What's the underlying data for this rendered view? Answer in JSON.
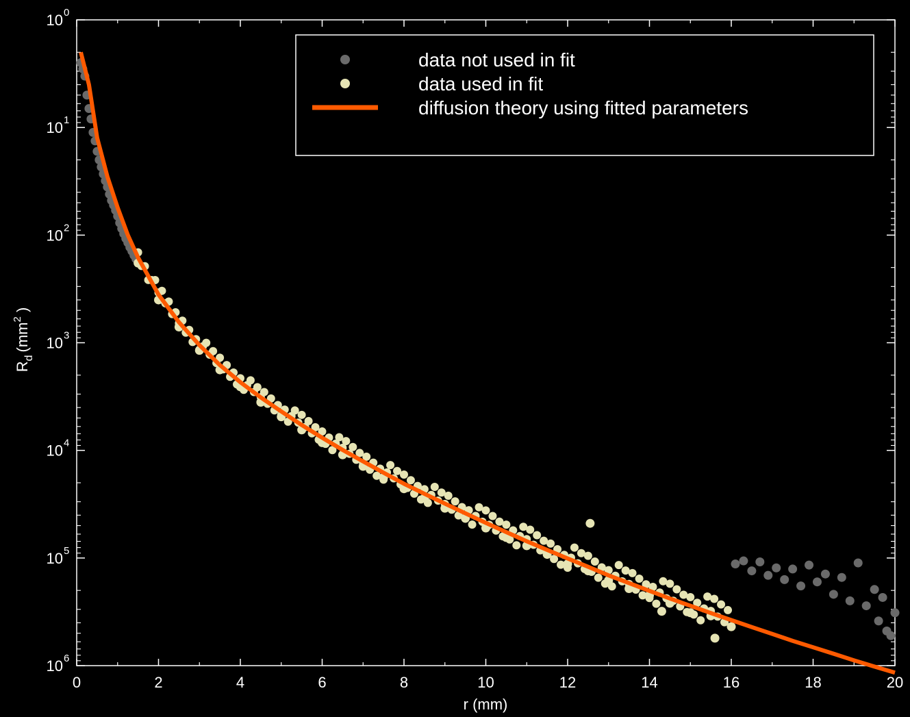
{
  "chart_data": {
    "type": "scatter",
    "xlabel": "r (mm)",
    "ylabel": {
      "base": "R",
      "subscript": "d",
      "unit_open": "(mm",
      "unit_sup": "2",
      "unit_close": " )"
    },
    "xlim": [
      0,
      20
    ],
    "ylim": [
      1e-06,
      1
    ],
    "yscale": "log",
    "y_direction": "decreasing-downward, exponent labels shown without minus sign",
    "grid": false,
    "legend_position": "top-right",
    "x_ticks": [
      "0",
      "2",
      "4",
      "6",
      "8",
      "10",
      "12",
      "14",
      "16",
      "18",
      "20"
    ],
    "y_ticks": [
      {
        "base": "10",
        "exp": "0"
      },
      {
        "base": "10",
        "exp": "1"
      },
      {
        "base": "10",
        "exp": "2"
      },
      {
        "base": "10",
        "exp": "3"
      },
      {
        "base": "10",
        "exp": "4"
      },
      {
        "base": "10",
        "exp": "5"
      },
      {
        "base": "10",
        "exp": "6"
      }
    ],
    "series": [
      {
        "name": "data not used in fit",
        "kind": "scatter",
        "color": "#6a6a6a",
        "x_range": [
          [
            0.05,
            1.5
          ],
          [
            16.0,
            20.0
          ]
        ],
        "points": [
          [
            0.1,
            0.4
          ],
          [
            0.15,
            0.35
          ],
          [
            0.2,
            0.3
          ],
          [
            0.25,
            0.2
          ],
          [
            0.3,
            0.15
          ],
          [
            0.35,
            0.12
          ],
          [
            0.4,
            0.09
          ],
          [
            0.45,
            0.075
          ],
          [
            0.5,
            0.06
          ],
          [
            0.55,
            0.05
          ],
          [
            0.6,
            0.043
          ],
          [
            0.65,
            0.037
          ],
          [
            0.7,
            0.032
          ],
          [
            0.75,
            0.028
          ],
          [
            0.8,
            0.024
          ],
          [
            0.85,
            0.021
          ],
          [
            0.9,
            0.019
          ],
          [
            0.95,
            0.017
          ],
          [
            1.0,
            0.015
          ],
          [
            1.05,
            0.013
          ],
          [
            1.1,
            0.0115
          ],
          [
            1.15,
            0.0103
          ],
          [
            1.2,
            0.0093
          ],
          [
            1.25,
            0.0085
          ],
          [
            1.3,
            0.0077
          ],
          [
            1.35,
            0.0071
          ],
          [
            1.4,
            0.0065
          ],
          [
            1.45,
            0.006
          ],
          [
            16.1,
            8.8e-06
          ],
          [
            16.3,
            9.4e-06
          ],
          [
            16.5,
            7.6e-06
          ],
          [
            16.7,
            9.2e-06
          ],
          [
            16.9,
            6.9e-06
          ],
          [
            17.1,
            8.1e-06
          ],
          [
            17.3,
            6.3e-06
          ],
          [
            17.5,
            7.9e-06
          ],
          [
            17.7,
            5.5e-06
          ],
          [
            17.9,
            8.6e-06
          ],
          [
            18.1,
            6e-06
          ],
          [
            18.3,
            7.1e-06
          ],
          [
            18.5,
            4.6e-06
          ],
          [
            18.7,
            6.6e-06
          ],
          [
            18.9,
            4e-06
          ],
          [
            19.1,
            9e-06
          ],
          [
            19.3,
            3.6e-06
          ],
          [
            19.5,
            5.1e-06
          ],
          [
            19.6,
            2.6e-06
          ],
          [
            19.7,
            4.3e-06
          ],
          [
            19.8,
            2.1e-06
          ],
          [
            19.9,
            1.9e-06
          ],
          [
            20.0,
            3.1e-06
          ]
        ]
      },
      {
        "name": "data used in fit",
        "kind": "scatter",
        "color": "#e6e4b4",
        "x_range": [
          1.5,
          16.0
        ],
        "points": [
          [
            1.5,
            0.0055
          ],
          [
            2.0,
            0.0025
          ],
          [
            2.5,
            0.0014
          ],
          [
            3.0,
            0.00085
          ],
          [
            3.5,
            0.00056
          ],
          [
            4.0,
            0.00039
          ],
          [
            4.5,
            0.00028
          ],
          [
            5.0,
            0.000205
          ],
          [
            5.5,
            0.000155
          ],
          [
            6.0,
            0.000118
          ],
          [
            6.5,
            9.1e-05
          ],
          [
            7.0,
            7.1e-05
          ],
          [
            7.5,
            5.6e-05
          ],
          [
            8.0,
            4.4e-05
          ],
          [
            8.5,
            3.6e-05
          ],
          [
            9.0,
            2.9e-05
          ],
          [
            9.5,
            2.35e-05
          ],
          [
            10.0,
            1.9e-05
          ],
          [
            10.5,
            1.55e-05
          ],
          [
            11.0,
            1.3e-05
          ],
          [
            11.5,
            1.08e-05
          ],
          [
            12.0,
            8.8e-06
          ],
          [
            12.5,
            7.6e-06
          ],
          [
            12.55,
            2.1e-05
          ],
          [
            13.0,
            6.2e-06
          ],
          [
            13.5,
            5.2e-06
          ],
          [
            14.0,
            4.5e-06
          ],
          [
            14.3,
            3.2e-06
          ],
          [
            14.5,
            3.8e-06
          ],
          [
            15.0,
            3.1e-06
          ],
          [
            15.5,
            2.9e-06
          ],
          [
            15.6,
            1.8e-06
          ],
          [
            16.0,
            2.3e-06
          ]
        ]
      },
      {
        "name": "diffusion theory using fitted parameters",
        "kind": "line",
        "color": "#ff5a00",
        "points": [
          [
            0.1,
            0.5
          ],
          [
            0.3,
            0.25
          ],
          [
            0.5,
            0.08
          ],
          [
            0.75,
            0.035
          ],
          [
            1.0,
            0.018
          ],
          [
            1.25,
            0.01
          ],
          [
            1.5,
            0.0062
          ],
          [
            2.0,
            0.0028
          ],
          [
            2.5,
            0.00155
          ],
          [
            3.0,
            0.00095
          ],
          [
            3.5,
            0.00062
          ],
          [
            4.0,
            0.00043
          ],
          [
            4.5,
            0.00031
          ],
          [
            5.0,
            0.00023
          ],
          [
            5.5,
            0.000172
          ],
          [
            6.0,
            0.000131
          ],
          [
            6.5,
            0.000101
          ],
          [
            7.0,
            7.9e-05
          ],
          [
            7.5,
            6.2e-05
          ],
          [
            8.0,
            4.9e-05
          ],
          [
            8.5,
            3.95e-05
          ],
          [
            9.0,
            3.2e-05
          ],
          [
            9.5,
            2.6e-05
          ],
          [
            10.0,
            2.12e-05
          ],
          [
            10.5,
            1.74e-05
          ],
          [
            11.0,
            1.43e-05
          ],
          [
            11.5,
            1.19e-05
          ],
          [
            12.0,
            9.9e-06
          ],
          [
            12.5,
            8.3e-06
          ],
          [
            13.0,
            6.9e-06
          ],
          [
            13.5,
            5.85e-06
          ],
          [
            14.0,
            4.95e-06
          ],
          [
            14.5,
            4.2e-06
          ],
          [
            15.0,
            3.6e-06
          ],
          [
            15.5,
            3.08e-06
          ],
          [
            16.0,
            2.65e-06
          ],
          [
            16.5,
            2.28e-06
          ],
          [
            17.0,
            1.97e-06
          ],
          [
            17.5,
            1.7e-06
          ],
          [
            18.0,
            1.48e-06
          ],
          [
            18.5,
            1.29e-06
          ],
          [
            19.0,
            1.12e-06
          ],
          [
            19.5,
            9.8e-07
          ],
          [
            20.0,
            8.6e-07
          ]
        ]
      }
    ]
  }
}
